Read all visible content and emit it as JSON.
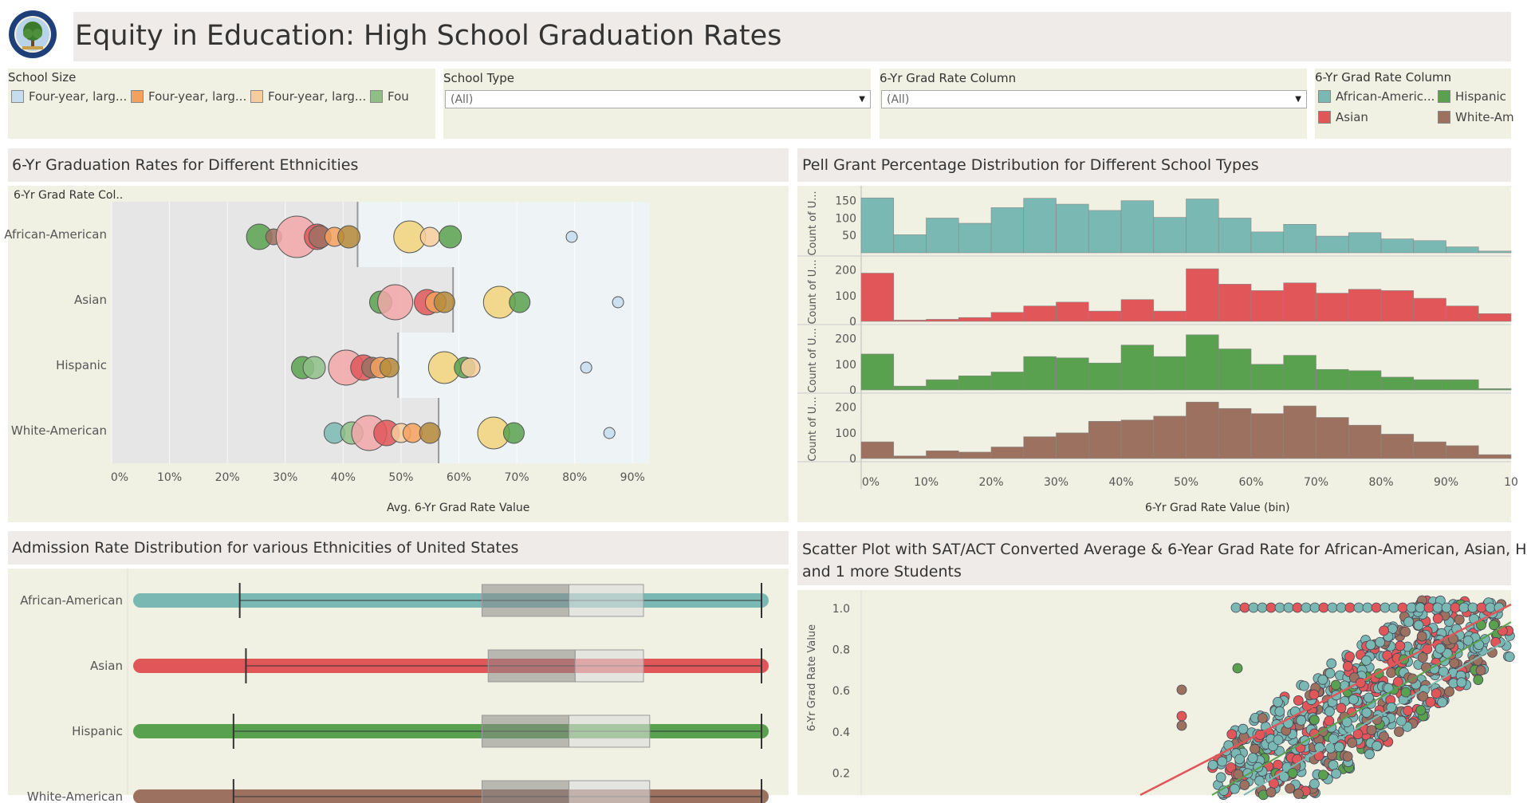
{
  "header": {
    "title": "Equity in Education: High School Graduation Rates",
    "logo_icon": "department-of-education-seal-icon"
  },
  "filters": {
    "school_size": {
      "title": "School Size",
      "items": [
        {
          "label": "Four-year, larg...",
          "color": "#c6ddef"
        },
        {
          "label": "Four-year, larg...",
          "color": "#f4a15d"
        },
        {
          "label": "Four-year, larg...",
          "color": "#f7cd9b"
        },
        {
          "label": "Fou",
          "color": "#8fbf87"
        }
      ]
    },
    "school_type": {
      "title": "School Type",
      "value": "(All)"
    },
    "grad_rate_column": {
      "title": "6-Yr Grad Rate Column",
      "value": "(All)"
    },
    "grad_rate_legend": {
      "title": "6-Yr Grad Rate Column",
      "items": [
        {
          "label": "African-Americ...",
          "color": "#7ab8b3"
        },
        {
          "label": "Hispanic",
          "color": "#59a14f"
        },
        {
          "label": "Asian",
          "color": "#e15759"
        },
        {
          "label": "White-Am",
          "color": "#9c7160"
        }
      ]
    }
  },
  "colors": {
    "african_american": "#7ab8b3",
    "asian": "#e15759",
    "hispanic": "#59a14f",
    "white_american": "#9c7160",
    "panel_bg": "#f1f1e3",
    "title_bg": "#efebe8"
  },
  "bubble_chart": {
    "title": "6-Yr Graduation Rates for Different Ethnicities",
    "header_label": "6-Yr Grad Rate Col..",
    "xlabel": "Avg. 6-Yr Grad Rate Value",
    "x_ticks": [
      "0%",
      "10%",
      "20%",
      "30%",
      "40%",
      "50%",
      "60%",
      "70%",
      "80%",
      "90%"
    ],
    "categories": [
      "African-American",
      "Asian",
      "Hispanic",
      "White-American"
    ]
  },
  "histogram": {
    "title": "Pell Grant Percentage Distribution for Different School Types",
    "ylabel_short": "Count of U...",
    "xlabel": "6-Yr Grad Rate Value (bin)",
    "x_ticks": [
      "0%",
      "10%",
      "20%",
      "30%",
      "40%",
      "50%",
      "60%",
      "70%",
      "80%",
      "90%",
      "10"
    ]
  },
  "boxplot": {
    "title": "Admission Rate Distribution for various Ethnicities of United States",
    "categories": [
      "African-American",
      "Asian",
      "Hispanic",
      "White-American"
    ]
  },
  "scatter": {
    "title_line1": "Scatter Plot with SAT/ACT Converted Average & 6-Year Grad Rate for African-American, Asian, H",
    "title_line2": "and 1 more  Students",
    "ylabel": "6-Yr Grad Rate Value",
    "y_ticks": [
      "1.0",
      "0.8",
      "0.6",
      "0.4",
      "0.2"
    ]
  },
  "chart_data": [
    {
      "type": "scatter",
      "chart": "bubble",
      "title": "6-Yr Graduation Rates for Different Ethnicities",
      "xlabel": "Avg. 6-Yr Grad Rate Value",
      "xlim": [
        0,
        0.93
      ],
      "categories": [
        "African-American",
        "Asian",
        "Hispanic",
        "White-American"
      ],
      "reference_band_end": [
        0.425,
        0.59,
        0.495,
        0.565
      ],
      "points": [
        {
          "cat": "African-American",
          "x": 0.255,
          "size": 16,
          "color": "#59a14f"
        },
        {
          "cat": "African-American",
          "x": 0.28,
          "size": 10,
          "color": "#9c7160"
        },
        {
          "cat": "African-American",
          "x": 0.32,
          "size": 26,
          "color": "#f2a7a8"
        },
        {
          "cat": "African-American",
          "x": 0.355,
          "size": 16,
          "color": "#e15759"
        },
        {
          "cat": "African-American",
          "x": 0.36,
          "size": 14,
          "color": "#9c7160"
        },
        {
          "cat": "African-American",
          "x": 0.385,
          "size": 12,
          "color": "#f4a15d"
        },
        {
          "cat": "African-American",
          "x": 0.41,
          "size": 14,
          "color": "#b5893a"
        },
        {
          "cat": "African-American",
          "x": 0.515,
          "size": 20,
          "color": "#f1d27a"
        },
        {
          "cat": "African-American",
          "x": 0.55,
          "size": 12,
          "color": "#f7cd9b"
        },
        {
          "cat": "African-American",
          "x": 0.585,
          "size": 14,
          "color": "#59a14f"
        },
        {
          "cat": "African-American",
          "x": 0.795,
          "size": 7,
          "color": "#c6ddef"
        },
        {
          "cat": "Asian",
          "x": 0.465,
          "size": 14,
          "color": "#59a14f"
        },
        {
          "cat": "Asian",
          "x": 0.49,
          "size": 22,
          "color": "#f2a7a8"
        },
        {
          "cat": "Asian",
          "x": 0.545,
          "size": 16,
          "color": "#e15759"
        },
        {
          "cat": "Asian",
          "x": 0.56,
          "size": 13,
          "color": "#f4a15d"
        },
        {
          "cat": "Asian",
          "x": 0.575,
          "size": 13,
          "color": "#b5893a"
        },
        {
          "cat": "Asian",
          "x": 0.67,
          "size": 20,
          "color": "#f1d27a"
        },
        {
          "cat": "Asian",
          "x": 0.705,
          "size": 13,
          "color": "#59a14f"
        },
        {
          "cat": "Asian",
          "x": 0.875,
          "size": 7,
          "color": "#c6ddef"
        },
        {
          "cat": "Hispanic",
          "x": 0.33,
          "size": 14,
          "color": "#59a14f"
        },
        {
          "cat": "Hispanic",
          "x": 0.35,
          "size": 14,
          "color": "#8fbf87"
        },
        {
          "cat": "Hispanic",
          "x": 0.405,
          "size": 22,
          "color": "#f2a7a8"
        },
        {
          "cat": "Hispanic",
          "x": 0.435,
          "size": 16,
          "color": "#e15759"
        },
        {
          "cat": "Hispanic",
          "x": 0.45,
          "size": 13,
          "color": "#9c7160"
        },
        {
          "cat": "Hispanic",
          "x": 0.465,
          "size": 13,
          "color": "#f4a15d"
        },
        {
          "cat": "Hispanic",
          "x": 0.48,
          "size": 12,
          "color": "#b5893a"
        },
        {
          "cat": "Hispanic",
          "x": 0.575,
          "size": 20,
          "color": "#f1d27a"
        },
        {
          "cat": "Hispanic",
          "x": 0.61,
          "size": 13,
          "color": "#59a14f"
        },
        {
          "cat": "Hispanic",
          "x": 0.62,
          "size": 12,
          "color": "#f7cd9b"
        },
        {
          "cat": "Hispanic",
          "x": 0.82,
          "size": 7,
          "color": "#c6ddef"
        },
        {
          "cat": "White-American",
          "x": 0.385,
          "size": 13,
          "color": "#7ab8b3"
        },
        {
          "cat": "White-American",
          "x": 0.415,
          "size": 14,
          "color": "#8fbf87"
        },
        {
          "cat": "White-American",
          "x": 0.445,
          "size": 22,
          "color": "#f2a7a8"
        },
        {
          "cat": "White-American",
          "x": 0.475,
          "size": 16,
          "color": "#e15759"
        },
        {
          "cat": "White-American",
          "x": 0.5,
          "size": 12,
          "color": "#f7cd9b"
        },
        {
          "cat": "White-American",
          "x": 0.52,
          "size": 12,
          "color": "#f4a15d"
        },
        {
          "cat": "White-American",
          "x": 0.55,
          "size": 13,
          "color": "#b5893a"
        },
        {
          "cat": "White-American",
          "x": 0.66,
          "size": 20,
          "color": "#f1d27a"
        },
        {
          "cat": "White-American",
          "x": 0.695,
          "size": 13,
          "color": "#59a14f"
        },
        {
          "cat": "White-American",
          "x": 0.86,
          "size": 7,
          "color": "#c6ddef"
        }
      ]
    },
    {
      "type": "bar",
      "chart": "histogram",
      "title": "Pell Grant Percentage Distribution for Different School Types",
      "xlabel": "6-Yr Grad Rate Value (bin)",
      "bin_width": 0.05,
      "series": [
        {
          "name": "African-American",
          "color": "#7ab8b3",
          "ylim": [
            0,
            170
          ],
          "y_ticks": [
            50,
            100,
            150
          ],
          "values": [
            158,
            52,
            100,
            85,
            130,
            157,
            140,
            122,
            150,
            102,
            155,
            100,
            60,
            82,
            48,
            58,
            40,
            35,
            17,
            5
          ]
        },
        {
          "name": "Asian",
          "color": "#e15759",
          "ylim": [
            0,
            230
          ],
          "y_ticks": [
            0,
            100,
            200
          ],
          "values": [
            188,
            5,
            8,
            15,
            35,
            60,
            75,
            40,
            85,
            40,
            205,
            145,
            120,
            150,
            110,
            125,
            120,
            90,
            60,
            30
          ]
        },
        {
          "name": "Hispanic",
          "color": "#59a14f",
          "ylim": [
            0,
            230
          ],
          "y_ticks": [
            0,
            100,
            200
          ],
          "values": [
            140,
            15,
            40,
            55,
            70,
            130,
            125,
            105,
            175,
            130,
            215,
            160,
            100,
            135,
            80,
            75,
            50,
            40,
            40,
            5
          ]
        },
        {
          "name": "White-American",
          "color": "#9c7160",
          "ylim": [
            0,
            230
          ],
          "y_ticks": [
            0,
            100,
            200
          ],
          "values": [
            65,
            10,
            30,
            25,
            45,
            85,
            100,
            145,
            150,
            165,
            220,
            195,
            175,
            205,
            160,
            130,
            95,
            65,
            50,
            15
          ]
        }
      ]
    },
    {
      "type": "table",
      "chart": "boxplot",
      "title": "Admission Rate Distribution for various Ethnicities of United States",
      "rows": [
        {
          "cat": "African-American",
          "color": "#7ab8b3",
          "min": 0.0,
          "whisker_low": 0.16,
          "q1": 0.55,
          "median": 0.69,
          "q3": 0.81,
          "whisker_high": 1.0
        },
        {
          "cat": "Asian",
          "color": "#e15759",
          "min": 0.0,
          "whisker_low": 0.17,
          "q1": 0.56,
          "median": 0.7,
          "q3": 0.81,
          "whisker_high": 1.0
        },
        {
          "cat": "Hispanic",
          "color": "#59a14f",
          "min": 0.0,
          "whisker_low": 0.15,
          "q1": 0.55,
          "median": 0.69,
          "q3": 0.82,
          "whisker_high": 1.0
        },
        {
          "cat": "White-American",
          "color": "#9c7160",
          "min": 0.0,
          "whisker_low": 0.15,
          "q1": 0.55,
          "median": 0.69,
          "q3": 0.82,
          "whisker_high": 1.0
        }
      ]
    },
    {
      "type": "scatter",
      "chart": "scatter",
      "title": "Scatter Plot with SAT/ACT Converted Average & 6-Year Grad Rate for African-American, Asian, H and 1 more  Students",
      "ylabel": "6-Yr Grad Rate Value",
      "ylim": [
        0.1,
        1.05
      ],
      "series": [
        {
          "name": "White-American",
          "color": "#9c7160"
        },
        {
          "name": "Asian",
          "color": "#e15759"
        },
        {
          "name": "Hispanic",
          "color": "#59a14f"
        },
        {
          "name": "African-American",
          "color": "#7ab8b3"
        }
      ]
    }
  ]
}
